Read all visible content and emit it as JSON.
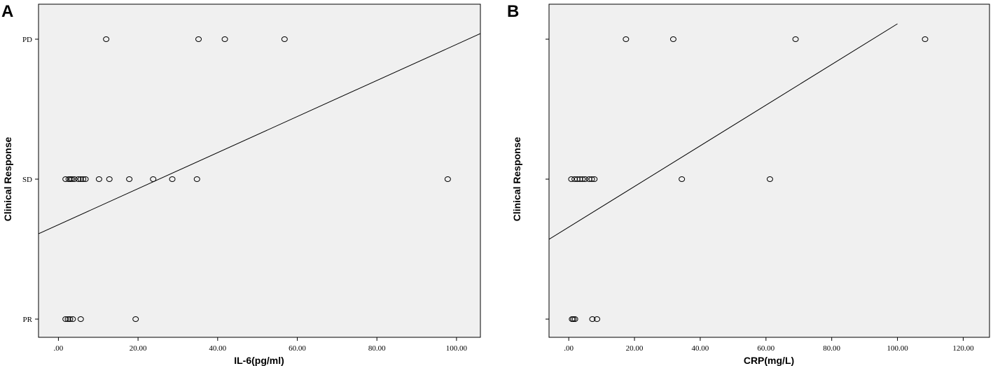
{
  "chart_data": [
    {
      "panel": "A",
      "type": "scatter",
      "xlabel": "IL-6(pg/ml)",
      "ylabel": "Clinical Response",
      "categories": [
        "PR",
        "SD",
        "PD"
      ],
      "xlim": [
        -5,
        106
      ],
      "xticks": [
        0,
        20,
        40,
        60,
        80,
        100
      ],
      "xtick_labels": [
        ".00",
        "20.00",
        "40.00",
        "60.00",
        "80.00",
        "100.00"
      ],
      "points": [
        {
          "x": 12.0,
          "y": "PD"
        },
        {
          "x": 35.2,
          "y": "PD"
        },
        {
          "x": 41.8,
          "y": "PD"
        },
        {
          "x": 56.8,
          "y": "PD"
        },
        {
          "x": 1.8,
          "y": "SD"
        },
        {
          "x": 2.6,
          "y": "SD"
        },
        {
          "x": 3.0,
          "y": "SD"
        },
        {
          "x": 3.4,
          "y": "SD"
        },
        {
          "x": 4.0,
          "y": "SD"
        },
        {
          "x": 5.0,
          "y": "SD"
        },
        {
          "x": 5.6,
          "y": "SD"
        },
        {
          "x": 6.2,
          "y": "SD"
        },
        {
          "x": 6.8,
          "y": "SD"
        },
        {
          "x": 10.2,
          "y": "SD"
        },
        {
          "x": 12.8,
          "y": "SD"
        },
        {
          "x": 17.8,
          "y": "SD"
        },
        {
          "x": 23.8,
          "y": "SD"
        },
        {
          "x": 28.6,
          "y": "SD"
        },
        {
          "x": 34.8,
          "y": "SD"
        },
        {
          "x": 97.8,
          "y": "SD"
        },
        {
          "x": 1.8,
          "y": "PR"
        },
        {
          "x": 2.4,
          "y": "PR"
        },
        {
          "x": 2.9,
          "y": "PR"
        },
        {
          "x": 3.6,
          "y": "PR"
        },
        {
          "x": 5.6,
          "y": "PR"
        },
        {
          "x": 19.4,
          "y": "PR"
        }
      ],
      "fit_line": {
        "x": [
          -5,
          106
        ],
        "y": [
          1.61,
          3.04
        ]
      }
    },
    {
      "panel": "B",
      "type": "scatter",
      "xlabel": "CRP(mg/L)",
      "ylabel": "Clinical Response",
      "categories": [
        "PR",
        "SD",
        "PD"
      ],
      "xlim": [
        -6,
        128
      ],
      "xticks": [
        0,
        20,
        40,
        60,
        80,
        100,
        120
      ],
      "xtick_labels": [
        ".00",
        "20.00",
        "40.00",
        "60.00",
        "80.00",
        "100.00",
        "120.00"
      ],
      "points": [
        {
          "x": 17.4,
          "y": "PD"
        },
        {
          "x": 31.8,
          "y": "PD"
        },
        {
          "x": 69.0,
          "y": "PD"
        },
        {
          "x": 108.4,
          "y": "PD"
        },
        {
          "x": 0.8,
          "y": "SD"
        },
        {
          "x": 1.8,
          "y": "SD"
        },
        {
          "x": 2.6,
          "y": "SD"
        },
        {
          "x": 3.4,
          "y": "SD"
        },
        {
          "x": 4.2,
          "y": "SD"
        },
        {
          "x": 5.0,
          "y": "SD"
        },
        {
          "x": 6.2,
          "y": "SD"
        },
        {
          "x": 7.0,
          "y": "SD"
        },
        {
          "x": 7.8,
          "y": "SD"
        },
        {
          "x": 34.4,
          "y": "SD"
        },
        {
          "x": 61.2,
          "y": "SD"
        },
        {
          "x": 1.0,
          "y": "PR"
        },
        {
          "x": 1.4,
          "y": "PR"
        },
        {
          "x": 1.9,
          "y": "PR"
        },
        {
          "x": 7.2,
          "y": "PR"
        },
        {
          "x": 8.6,
          "y": "PR"
        }
      ],
      "fit_line": {
        "x": [
          -6,
          100
        ],
        "y": [
          1.57,
          3.11
        ]
      }
    }
  ]
}
